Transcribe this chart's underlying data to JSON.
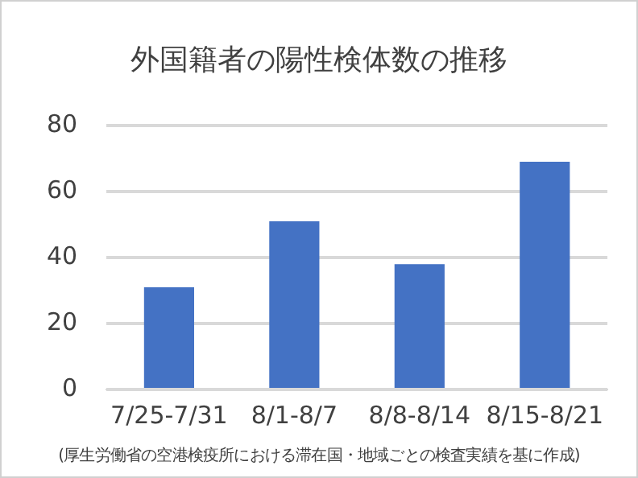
{
  "chart_data": {
    "type": "bar",
    "title": "外国籍者の陽性検体数の推移",
    "categories": [
      "7/25-7/31",
      "8/1-8/7",
      "8/8-8/14",
      "8/15-8/21"
    ],
    "values": [
      31,
      51,
      38,
      69
    ],
    "color": "#4472c4",
    "ylim": [
      0,
      80
    ],
    "yticks": [
      0,
      20,
      40,
      60,
      80
    ],
    "grid": "y",
    "legend": false,
    "annotations": [
      "(厚生労働省の空港検疫所における滞在国・地域ごとの検査実績を基に作成)"
    ]
  }
}
